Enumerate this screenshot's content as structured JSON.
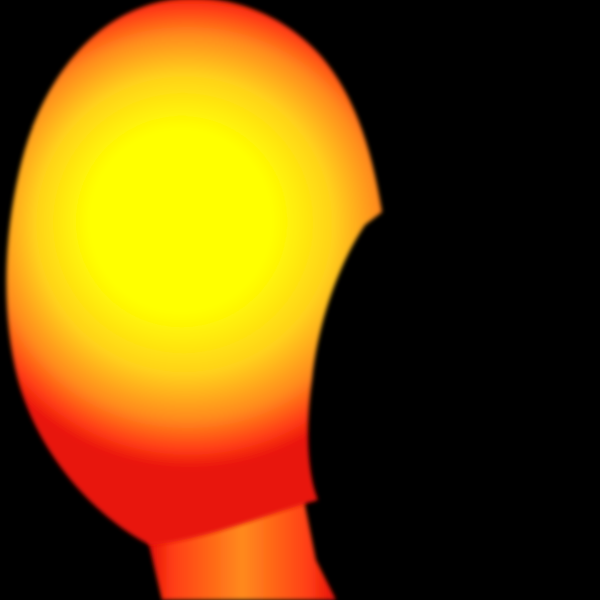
{
  "scene": {
    "colors": {
      "background": "#000000",
      "core": "#ffff00",
      "mid": "#ffd21a",
      "outer": "#ff8a1c",
      "edge": "#ff3d14",
      "rim": "#e8120a"
    },
    "shape": "glowing-blob"
  }
}
